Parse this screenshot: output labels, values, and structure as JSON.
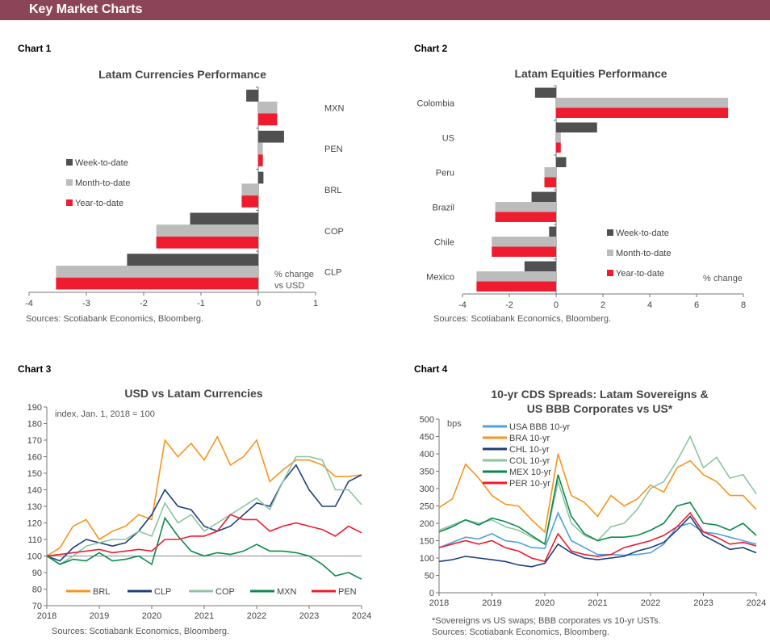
{
  "header": {
    "title": "Key Market Charts"
  },
  "colors": {
    "header": "#8c4558",
    "wtd": "#505050",
    "mtd": "#bcbcbc",
    "ytd": "#ee1c2e"
  },
  "chart_data": [
    {
      "label": "Chart 1",
      "type": "bar",
      "orientation": "horizontal",
      "title": "Latam Currencies Performance",
      "categories": [
        "MXN",
        "PEN",
        "BRL",
        "COP",
        "CLP"
      ],
      "series": [
        {
          "name": "Week-to-date",
          "values": [
            -0.21,
            0.45,
            0.09,
            -1.19,
            -2.29
          ]
        },
        {
          "name": "Month-to-date",
          "values": [
            0.33,
            0.08,
            -0.29,
            -1.78,
            -3.53
          ]
        },
        {
          "name": "Year-to-date",
          "values": [
            0.33,
            0.08,
            -0.29,
            -1.78,
            -3.53
          ]
        }
      ],
      "xlim": [
        -4,
        1
      ],
      "xticks": [
        "-4",
        "-3",
        "-2",
        "-1",
        "0",
        "1"
      ],
      "unit_note": [
        "% change",
        "vs USD"
      ],
      "legend": "left",
      "source": "Sources: Scotiabank Economics, Bloomberg."
    },
    {
      "label": "Chart 2",
      "type": "bar",
      "orientation": "horizontal",
      "title": "Latam Equities Performance",
      "categories": [
        "Colombia",
        "US",
        "Peru",
        "Brazil",
        "Chile",
        "Mexico"
      ],
      "series": [
        {
          "name": "Week-to-date",
          "values": [
            -0.9,
            1.75,
            0.43,
            -1.05,
            -0.3,
            -1.35
          ]
        },
        {
          "name": "Month-to-date",
          "values": [
            7.35,
            0.2,
            -0.5,
            -2.6,
            -2.75,
            -3.4
          ]
        },
        {
          "name": "Year-to-date",
          "values": [
            7.35,
            0.2,
            -0.5,
            -2.6,
            -2.75,
            -3.4
          ]
        }
      ],
      "xlim": [
        -4,
        8
      ],
      "xticks": [
        "-4",
        "-2",
        "0",
        "2",
        "4",
        "6",
        "8"
      ],
      "unit_note": [
        "% change"
      ],
      "legend": "bottom-right",
      "source": "Sources: Scotiabank Economics, Bloomberg."
    },
    {
      "label": "Chart 3",
      "type": "line",
      "title": "USD vs Latam Currencies",
      "subtitle": "index, Jan. 1, 2018 = 100",
      "x": [
        2018,
        2018.25,
        2018.5,
        2018.75,
        2019,
        2019.25,
        2019.5,
        2019.75,
        2020,
        2020.25,
        2020.5,
        2020.75,
        2021,
        2021.25,
        2021.5,
        2021.75,
        2022,
        2022.25,
        2022.5,
        2022.75,
        2023,
        2023.25,
        2023.5,
        2023.75,
        2024
      ],
      "series": [
        {
          "name": "BRL",
          "color": "#f7941d",
          "values": [
            100,
            105,
            118,
            122,
            110,
            115,
            118,
            125,
            122,
            170,
            160,
            168,
            158,
            172,
            155,
            160,
            170,
            145,
            152,
            158,
            158,
            155,
            148,
            148,
            149
          ]
        },
        {
          "name": "CLP",
          "color": "#1f3f7a",
          "values": [
            100,
            97,
            105,
            110,
            108,
            106,
            108,
            115,
            125,
            140,
            130,
            128,
            118,
            115,
            118,
            125,
            132,
            130,
            145,
            155,
            140,
            130,
            130,
            145,
            149
          ]
        },
        {
          "name": "COP",
          "color": "#8cc5a0",
          "values": [
            100,
            95,
            100,
            106,
            108,
            110,
            110,
            115,
            112,
            132,
            120,
            125,
            115,
            120,
            125,
            130,
            135,
            128,
            145,
            160,
            160,
            158,
            140,
            140,
            131
          ]
        },
        {
          "name": "MXN",
          "color": "#0a8a4a",
          "values": [
            100,
            95,
            98,
            97,
            102,
            97,
            98,
            100,
            95,
            123,
            112,
            103,
            100,
            102,
            101,
            103,
            107,
            103,
            103,
            102,
            100,
            95,
            88,
            90,
            86
          ]
        },
        {
          "name": "PEN",
          "color": "#ee1c2e",
          "values": [
            100,
            101,
            102,
            103,
            104,
            102,
            103,
            104,
            103,
            110,
            110,
            112,
            112,
            115,
            125,
            122,
            122,
            115,
            118,
            120,
            118,
            116,
            112,
            118,
            114
          ]
        }
      ],
      "ylim": [
        70,
        190
      ],
      "yticks": [
        "70",
        "80",
        "90",
        "100",
        "110",
        "120",
        "130",
        "140",
        "150",
        "160",
        "170",
        "180",
        "190"
      ],
      "xticks": [
        "2018",
        "2019",
        "2020",
        "2021",
        "2022",
        "2023",
        "2024"
      ],
      "reference_line": 100,
      "legend": "bottom",
      "source": "Sources: Scotiabank Economics, Bloomberg."
    },
    {
      "label": "Chart 4",
      "type": "line",
      "title": [
        "10-yr CDS Spreads: Latam Sovereigns &",
        "US BBB Corporates vs US*"
      ],
      "ylabel": "bps",
      "x": [
        2018,
        2018.25,
        2018.5,
        2018.75,
        2019,
        2019.25,
        2019.5,
        2019.75,
        2020,
        2020.25,
        2020.5,
        2020.75,
        2021,
        2021.25,
        2021.5,
        2021.75,
        2022,
        2022.25,
        2022.5,
        2022.75,
        2023,
        2023.25,
        2023.5,
        2023.75,
        2024
      ],
      "series": [
        {
          "name": "USA BBB 10-yr",
          "color": "#4aa3df",
          "values": [
            130,
            145,
            160,
            155,
            170,
            150,
            145,
            130,
            128,
            230,
            150,
            130,
            110,
            110,
            108,
            110,
            115,
            140,
            190,
            200,
            175,
            170,
            160,
            150,
            140
          ]
        },
        {
          "name": "BRA 10-yr",
          "color": "#f7941d",
          "values": [
            245,
            270,
            370,
            330,
            280,
            255,
            250,
            210,
            175,
            400,
            280,
            260,
            220,
            280,
            250,
            270,
            310,
            290,
            360,
            380,
            340,
            320,
            280,
            280,
            240
          ]
        },
        {
          "name": "CHL 10-yr",
          "color": "#1f3f7a",
          "values": [
            90,
            95,
            105,
            100,
            95,
            90,
            80,
            75,
            85,
            140,
            115,
            100,
            95,
            100,
            105,
            120,
            130,
            145,
            180,
            220,
            165,
            145,
            125,
            130,
            115
          ]
        },
        {
          "name": "COL 10-yr",
          "color": "#8cc5a0",
          "values": [
            180,
            195,
            210,
            200,
            210,
            190,
            180,
            160,
            140,
            320,
            200,
            165,
            150,
            190,
            200,
            240,
            300,
            320,
            380,
            450,
            360,
            390,
            330,
            340,
            285
          ]
        },
        {
          "name": "MEX 10-yr",
          "color": "#0a8a4a",
          "values": [
            175,
            190,
            210,
            195,
            215,
            205,
            190,
            165,
            140,
            340,
            220,
            170,
            150,
            160,
            160,
            165,
            180,
            200,
            250,
            260,
            200,
            195,
            180,
            200,
            165
          ]
        },
        {
          "name": "PER 10-yr",
          "color": "#ee1c2e",
          "values": [
            130,
            140,
            150,
            140,
            150,
            130,
            120,
            100,
            90,
            170,
            120,
            110,
            105,
            110,
            130,
            140,
            150,
            165,
            190,
            230,
            175,
            160,
            140,
            145,
            135
          ]
        }
      ],
      "ylim": [
        0,
        500
      ],
      "yticks": [
        "0",
        "50",
        "100",
        "150",
        "200",
        "250",
        "300",
        "350",
        "400",
        "450",
        "500"
      ],
      "xticks": [
        "2018",
        "2019",
        "2020",
        "2021",
        "2022",
        "2023",
        "2024"
      ],
      "legend": "top-left",
      "footnote": "*Sovereigns vs US swaps; BBB corporates vs 10-yr USTs.",
      "source": "Sources: Scotiabank Economics, Bloomberg."
    }
  ]
}
